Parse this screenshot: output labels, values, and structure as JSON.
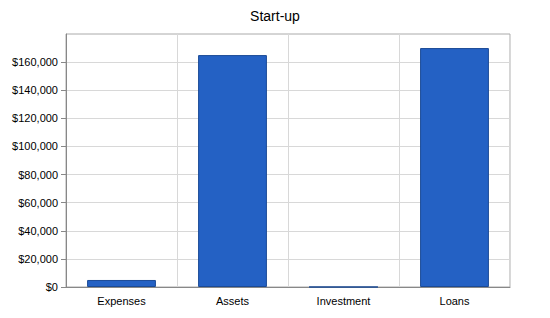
{
  "chart_data": {
    "type": "bar",
    "title": "Start-up",
    "categories": [
      "Expenses",
      "Assets",
      "Investment",
      "Loans"
    ],
    "values": [
      5000,
      165000,
      0,
      170000
    ],
    "color": "#2461c4",
    "ylim": [
      0,
      180000
    ],
    "yticks": [
      {
        "value": 0,
        "label": "$0"
      },
      {
        "value": 20000,
        "label": "$20,000"
      },
      {
        "value": 40000,
        "label": "$40,000"
      },
      {
        "value": 60000,
        "label": "$60,000"
      },
      {
        "value": 80000,
        "label": "$80,000"
      },
      {
        "value": 100000,
        "label": "$100,000"
      },
      {
        "value": 120000,
        "label": "$120,000"
      },
      {
        "value": 140000,
        "label": "$140,000"
      },
      {
        "value": 160000,
        "label": "$160,000"
      }
    ],
    "grid": true
  }
}
